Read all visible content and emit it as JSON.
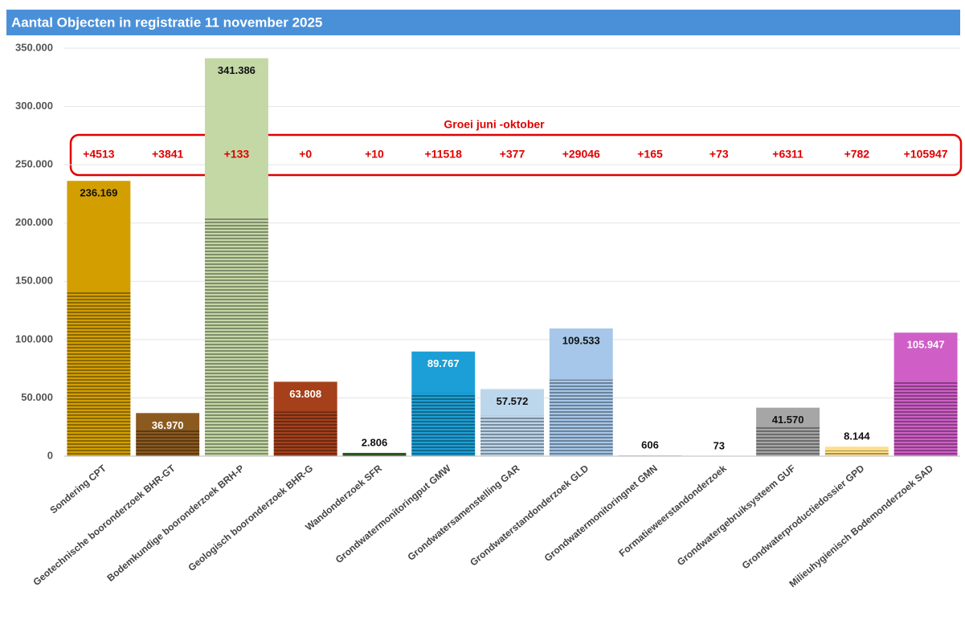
{
  "chart_data": {
    "type": "bar",
    "title": "Aantal  Objecten in registratie 11 november  2025",
    "categories": [
      "Sondering CPT",
      "Geotechnische booronderzoek BHR-GT",
      "Bodemkundige booronderzoek BRH-P",
      "Geologisch booronderzoek BHR-G",
      "Wandonderzoek SFR",
      "Grondwatermonitoringput GMW",
      "Grondwatersamenstelling GAR",
      "Grondwaterstandonderzoek GLD",
      "Grondwatermonitoringnet GMN",
      "Formatieweerstandonderzoek",
      "Grondwatergebruiksysteem GUF",
      "Grondwaterproductiedossier GPD",
      "Milieuhygienisch Bodemonderzoek SAD"
    ],
    "values": [
      236169,
      36970,
      341386,
      63808,
      2806,
      89767,
      57572,
      109533,
      606,
      73,
      41570,
      8144,
      105947
    ],
    "value_labels": [
      "236.169",
      "36.970",
      "341.386",
      "63.808",
      "2.806",
      "89.767",
      "57.572",
      "109.533",
      "606",
      "73",
      "41.570",
      "8.144",
      "105.947"
    ],
    "colors": [
      "#d39f00",
      "#8c5a1f",
      "#c4d8a6",
      "#a5401b",
      "#2f5b1f",
      "#1c9fd6",
      "#bcd6ec",
      "#a6c7e9",
      "#bfbfbf",
      "#e3e3e3",
      "#a6a6a6",
      "#ffe08a",
      "#cf5fc7"
    ],
    "ylim": [
      0,
      350000
    ],
    "yticks": [
      0,
      {
        "value": 50000,
        "label": "50.000"
      },
      {
        "value": 100000,
        "label": "100.000"
      },
      {
        "value": 150000,
        "label": "150.000"
      },
      {
        "value": 200000,
        "label": "200.000"
      },
      {
        "value": 250000,
        "label": "250.000"
      },
      {
        "value": 300000,
        "label": "300.000"
      },
      {
        "value": 350000,
        "label": "350.000"
      }
    ],
    "grid": true,
    "annotation": "Groei juni -oktober",
    "growth_labels": [
      "+4513",
      "+3841",
      "+133",
      "+0",
      "+10",
      "+11518",
      "+377",
      "+29046",
      "+165",
      "+73",
      "+6311",
      "+782",
      "+105947"
    ]
  }
}
